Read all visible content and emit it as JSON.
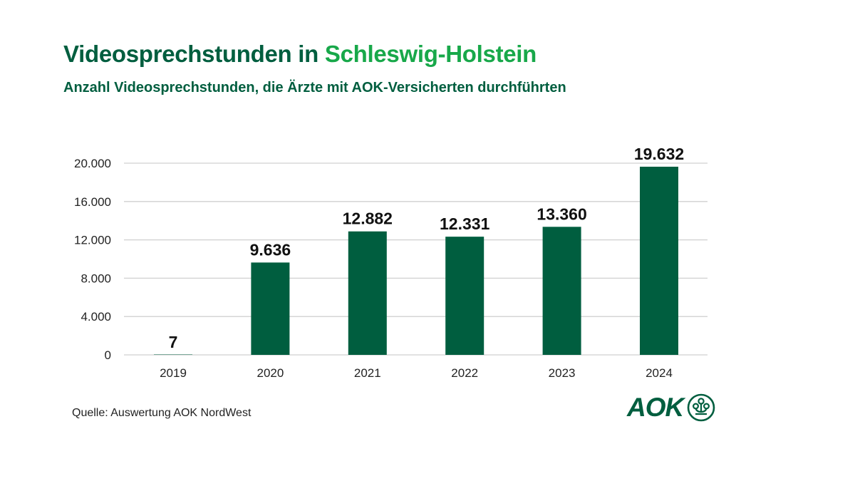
{
  "header": {
    "title_main": "Videosprechstunden in",
    "title_highlight": "Schleswig-Holstein",
    "subtitle": "Anzahl Videosprechstunden, die Ärzte mit AOK-Versicherten durchführten"
  },
  "footer": {
    "source": "Quelle: Auswertung AOK NordWest",
    "logo_text": "AOK"
  },
  "colors": {
    "bar": "#005e3f",
    "title": "#005e3f",
    "highlight": "#18a84a",
    "grid": "#d0d0d0"
  },
  "chart_data": {
    "type": "bar",
    "title": "Videosprechstunden in Schleswig-Holstein",
    "subtitle": "Anzahl Videosprechstunden, die Ärzte mit AOK-Versicherten durchführten",
    "categories": [
      "2019",
      "2020",
      "2021",
      "2022",
      "2023",
      "2024"
    ],
    "values": [
      7,
      9636,
      12882,
      12331,
      13360,
      19632
    ],
    "value_labels": [
      "7",
      "9.636",
      "12.882",
      "12.331",
      "13.360",
      "19.632"
    ],
    "xlabel": "",
    "ylabel": "",
    "ylim": [
      0,
      20000
    ],
    "yticks": [
      0,
      4000,
      8000,
      12000,
      16000,
      20000
    ],
    "ytick_labels": [
      "0",
      "4.000",
      "8.000",
      "12.000",
      "16.000",
      "20.000"
    ],
    "grid": true,
    "legend": "none"
  }
}
